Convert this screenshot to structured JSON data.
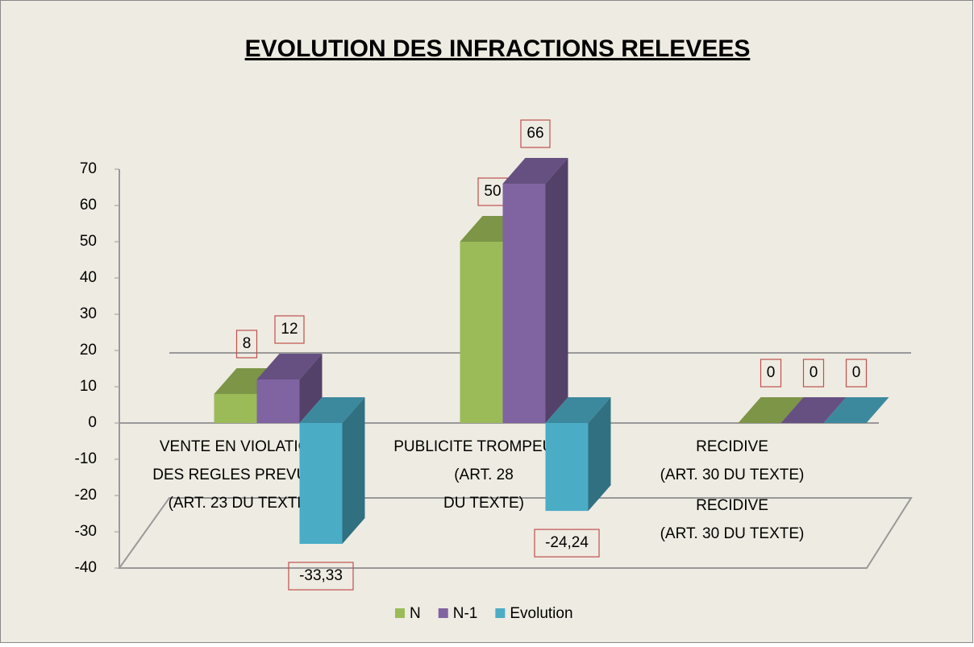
{
  "chart_data": {
    "type": "bar3d",
    "title": "EVOLUTION DES INFRACTIONS RELEVEES",
    "categories": [
      "VENTE  EN VIOLATION\nDES REGLES PREVUES\n(ART. 23 DU TEXTE)",
      "PUBLICITE TROMPEUSE\n(ART. 28\nDU TEXTE)",
      "RECIDIVE\n(ART. 30 DU TEXTE)"
    ],
    "annotations": [
      "RECIDIVE\n(ART. 30 DU TEXTE)"
    ],
    "series": [
      {
        "name": "N",
        "color": "#9bbb59",
        "values": [
          8,
          50,
          0
        ]
      },
      {
        "name": "N-1",
        "color": "#8064a2",
        "values": [
          12,
          66,
          0
        ]
      },
      {
        "name": "Evolution",
        "color": "#4bacc6",
        "values": [
          -33.33,
          -24.24,
          0
        ],
        "value_labels": [
          "-33,33",
          "-24,24",
          "0"
        ]
      }
    ],
    "ylim": [
      -40,
      70
    ],
    "yticks": [
      -40,
      -30,
      -20,
      -10,
      0,
      10,
      20,
      30,
      40,
      50,
      60,
      70
    ],
    "legend": "bottom"
  }
}
